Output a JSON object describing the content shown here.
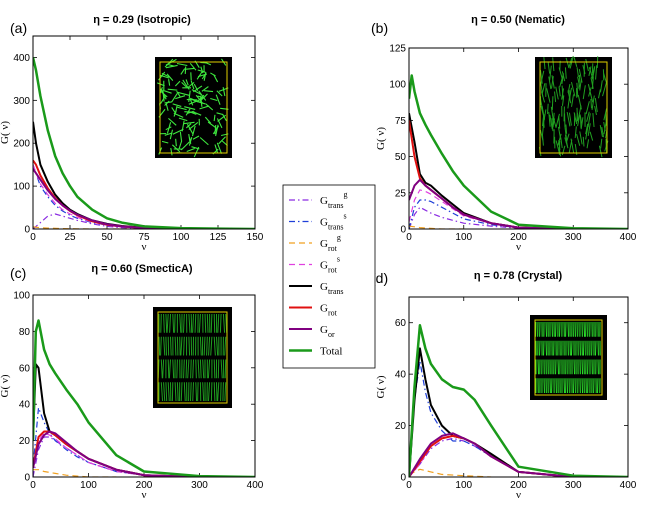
{
  "figure": {
    "series_styles": [
      {
        "key": "Gtrans_g",
        "color": "#8a2be2",
        "dash": "6,3,1.5,3",
        "width": 1.2
      },
      {
        "key": "Gtrans_s",
        "color": "#1f3fd8",
        "dash": "6,3,1.5,3",
        "width": 1.2
      },
      {
        "key": "Grot_g",
        "color": "#f0a020",
        "dash": "6,4",
        "width": 1.2
      },
      {
        "key": "Grot_s",
        "color": "#e040e0",
        "dash": "6,4",
        "width": 1.2
      },
      {
        "key": "Gtrans",
        "color": "#000000",
        "dash": "",
        "width": 2
      },
      {
        "key": "Grot",
        "color": "#e01010",
        "dash": "",
        "width": 2
      },
      {
        "key": "Gor",
        "color": "#800080",
        "dash": "",
        "width": 2
      },
      {
        "key": "Total",
        "color": "#1a9a1a",
        "dash": "",
        "width": 2.5
      }
    ],
    "legend": {
      "entries": [
        {
          "main": "G",
          "sub": "trans",
          "sup": "g"
        },
        {
          "main": "G",
          "sub": "trans",
          "sup": "s"
        },
        {
          "main": "G",
          "sub": "rot",
          "sup": "g"
        },
        {
          "main": "G",
          "sub": "rot",
          "sup": "s"
        },
        {
          "main": "G",
          "sub": "trans",
          "sup": ""
        },
        {
          "main": "G",
          "sub": "rot",
          "sup": ""
        },
        {
          "main": "G",
          "sub": "or",
          "sup": ""
        },
        {
          "main": "Total",
          "sub": "",
          "sup": ""
        }
      ]
    }
  },
  "chart_data": [
    {
      "type": "line",
      "panel_label": "(a)",
      "title": "η = 0.29 (Isotropic)",
      "xlabel": "ν",
      "ylabel": "G( ν)",
      "xlim": [
        0,
        150
      ],
      "ylim": [
        0,
        450
      ],
      "xticks": [
        0,
        25,
        50,
        75,
        100,
        125,
        150
      ],
      "yticks": [
        0,
        100,
        200,
        300,
        400
      ],
      "inset_color": "#3ee83e",
      "series": [
        {
          "name": "Gtrans_g",
          "x": [
            0,
            5,
            10,
            15,
            20,
            25,
            30,
            40,
            50,
            60,
            75,
            100
          ],
          "y": [
            0,
            15,
            30,
            35,
            30,
            25,
            20,
            12,
            6,
            3,
            1,
            0
          ]
        },
        {
          "name": "Gtrans_s",
          "x": [
            0,
            5,
            10,
            15,
            20,
            25,
            30,
            40,
            50,
            60,
            75,
            100
          ],
          "y": [
            150,
            100,
            75,
            55,
            42,
            32,
            25,
            15,
            9,
            5,
            2,
            0
          ]
        },
        {
          "name": "Grot_g",
          "x": [
            0,
            5,
            10,
            20,
            30,
            40,
            60,
            80
          ],
          "y": [
            5,
            3,
            2,
            1,
            0.5,
            0,
            0,
            0
          ]
        },
        {
          "name": "Grot_s",
          "x": [
            0,
            5,
            10,
            15,
            20,
            25,
            30,
            40,
            50,
            60,
            75,
            100
          ],
          "y": [
            150,
            105,
            80,
            60,
            45,
            35,
            27,
            16,
            9,
            5,
            2,
            0
          ]
        },
        {
          "name": "Gtrans",
          "x": [
            0,
            2,
            5,
            10,
            15,
            20,
            25,
            30,
            40,
            50,
            60,
            75,
            100,
            125,
            150
          ],
          "y": [
            250,
            200,
            150,
            110,
            80,
            60,
            45,
            35,
            20,
            12,
            7,
            3,
            1,
            0,
            0
          ]
        },
        {
          "name": "Grot",
          "x": [
            0,
            2,
            5,
            10,
            15,
            20,
            25,
            30,
            40,
            50,
            60,
            75,
            100,
            125,
            150
          ],
          "y": [
            160,
            150,
            125,
            95,
            72,
            55,
            42,
            32,
            18,
            10,
            6,
            2,
            1,
            0,
            0
          ]
        },
        {
          "name": "Gor",
          "x": [
            0,
            2,
            5,
            10,
            15,
            20,
            25,
            30,
            40,
            50,
            60,
            75,
            100,
            125,
            150
          ],
          "y": [
            140,
            130,
            115,
            90,
            70,
            55,
            43,
            33,
            20,
            11,
            6,
            2,
            1,
            0,
            0
          ]
        },
        {
          "name": "Total",
          "x": [
            0,
            2,
            5,
            10,
            15,
            20,
            25,
            30,
            40,
            50,
            60,
            75,
            100,
            125,
            150
          ],
          "y": [
            400,
            370,
            310,
            230,
            170,
            130,
            100,
            75,
            45,
            25,
            15,
            6,
            2,
            1,
            0
          ]
        }
      ]
    },
    {
      "type": "line",
      "panel_label": "(b)",
      "title": "η = 0.50 (Nematic)",
      "xlabel": "ν",
      "ylabel": "G( ν)",
      "xlim": [
        0,
        400
      ],
      "ylim": [
        0,
        125
      ],
      "xticks": [
        0,
        100,
        200,
        300,
        400
      ],
      "yticks": [
        0,
        25,
        50,
        75,
        100,
        125
      ],
      "inset_color": "#20a020",
      "series": [
        {
          "name": "Gtrans_g",
          "x": [
            0,
            10,
            20,
            30,
            40,
            60,
            80,
            100,
            150,
            200,
            300
          ],
          "y": [
            0,
            10,
            15,
            13,
            11,
            8,
            6,
            4,
            2,
            0.5,
            0
          ]
        },
        {
          "name": "Gtrans_s",
          "x": [
            0,
            10,
            20,
            30,
            40,
            60,
            80,
            100,
            150,
            200,
            300
          ],
          "y": [
            0,
            15,
            20,
            20,
            19,
            15,
            11,
            7,
            3,
            1,
            0
          ]
        },
        {
          "name": "Grot_g",
          "x": [
            0,
            10,
            20,
            40,
            60,
            100
          ],
          "y": [
            2,
            1.5,
            1,
            0.5,
            0,
            0
          ]
        },
        {
          "name": "Grot_s",
          "x": [
            0,
            10,
            20,
            30,
            40,
            60,
            80,
            100,
            150,
            200,
            300
          ],
          "y": [
            5,
            20,
            27,
            26,
            24,
            19,
            14,
            9,
            4,
            1,
            0
          ]
        },
        {
          "name": "Gtrans",
          "x": [
            0,
            10,
            20,
            30,
            40,
            60,
            80,
            100,
            150,
            200,
            300
          ],
          "y": [
            80,
            60,
            38,
            32,
            30,
            23,
            17,
            11,
            4,
            1,
            0
          ]
        },
        {
          "name": "Grot",
          "x": [
            0,
            10,
            20,
            30,
            40,
            60,
            80,
            100,
            150,
            200,
            300
          ],
          "y": [
            75,
            50,
            35,
            30,
            27,
            21,
            15,
            10,
            4,
            1,
            0
          ]
        },
        {
          "name": "Gor",
          "x": [
            0,
            10,
            20,
            30,
            40,
            60,
            80,
            100,
            150,
            200,
            300
          ],
          "y": [
            20,
            30,
            34,
            30,
            27,
            21,
            15,
            10,
            4,
            1,
            0
          ]
        },
        {
          "name": "Total",
          "x": [
            0,
            5,
            10,
            20,
            30,
            40,
            60,
            80,
            100,
            150,
            200,
            300,
            400
          ],
          "y": [
            90,
            106,
            95,
            80,
            72,
            65,
            52,
            40,
            30,
            12,
            3,
            0.5,
            0
          ]
        }
      ]
    },
    {
      "type": "line",
      "panel_label": "(c)",
      "title": "η = 0.60 (SmecticA)",
      "xlabel": "ν",
      "ylabel": "G( ν)",
      "xlim": [
        0,
        400
      ],
      "ylim": [
        0,
        100
      ],
      "xticks": [
        0,
        100,
        200,
        300,
        400
      ],
      "yticks": [
        0,
        20,
        40,
        60,
        80,
        100
      ],
      "inset_color": "#20a020",
      "series": [
        {
          "name": "Gtrans_g",
          "x": [
            0,
            10,
            20,
            30,
            40,
            60,
            80,
            100,
            150,
            200,
            300
          ],
          "y": [
            0,
            15,
            22,
            22,
            20,
            16,
            12,
            8,
            3,
            1,
            0
          ]
        },
        {
          "name": "Gtrans_s",
          "x": [
            0,
            10,
            20,
            30,
            40,
            60,
            80,
            100,
            150,
            200,
            300
          ],
          "y": [
            5,
            38,
            30,
            24,
            20,
            15,
            11,
            8,
            3,
            1,
            0
          ]
        },
        {
          "name": "Grot_g",
          "x": [
            0,
            10,
            20,
            30,
            40,
            60,
            80,
            100,
            150
          ],
          "y": [
            4,
            4,
            3,
            2.5,
            2,
            1,
            0.5,
            0,
            0
          ]
        },
        {
          "name": "Grot_s",
          "x": [
            0,
            10,
            20,
            30,
            40,
            60,
            80,
            100,
            150,
            200,
            300
          ],
          "y": [
            5,
            20,
            24,
            23,
            21,
            16,
            12,
            8,
            3,
            1,
            0
          ]
        },
        {
          "name": "Gtrans",
          "x": [
            0,
            5,
            10,
            20,
            30,
            40,
            60,
            80,
            100,
            150,
            200,
            300
          ],
          "y": [
            20,
            62,
            60,
            35,
            25,
            23,
            18,
            14,
            10,
            4,
            1,
            0
          ]
        },
        {
          "name": "Grot",
          "x": [
            0,
            10,
            20,
            30,
            40,
            60,
            80,
            100,
            150,
            200,
            300
          ],
          "y": [
            5,
            22,
            25,
            25,
            23,
            18,
            14,
            10,
            4,
            1,
            0
          ]
        },
        {
          "name": "Gor",
          "x": [
            0,
            10,
            20,
            30,
            40,
            60,
            80,
            100,
            150,
            200,
            300
          ],
          "y": [
            5,
            18,
            23,
            25,
            24,
            19,
            14,
            10,
            4,
            1,
            0
          ]
        },
        {
          "name": "Total",
          "x": [
            0,
            5,
            10,
            20,
            30,
            40,
            60,
            80,
            100,
            150,
            200,
            300,
            400
          ],
          "y": [
            20,
            80,
            86,
            70,
            62,
            57,
            48,
            40,
            30,
            12,
            3,
            0.5,
            0
          ]
        }
      ]
    },
    {
      "type": "line",
      "panel_label": "(d)",
      "title": "η = 0.78 (Crystal)",
      "xlabel": "ν",
      "ylabel": "G( ν)",
      "xlim": [
        0,
        400
      ],
      "ylim": [
        0,
        70
      ],
      "xticks": [
        0,
        100,
        200,
        300,
        400
      ],
      "yticks": [
        0,
        20,
        40,
        60
      ],
      "inset_color": "#2ef02e",
      "series": [
        {
          "name": "Gtrans_g",
          "x": [
            0,
            20,
            40,
            60,
            80,
            100,
            120,
            150,
            200,
            300
          ],
          "y": [
            0,
            5,
            11,
            14,
            15,
            14,
            12,
            8,
            2,
            0
          ]
        },
        {
          "name": "Gtrans_s",
          "x": [
            0,
            10,
            20,
            30,
            40,
            60,
            80,
            100,
            120,
            150,
            200,
            300
          ],
          "y": [
            0,
            30,
            45,
            33,
            25,
            18,
            14,
            14,
            12,
            8,
            2,
            0
          ]
        },
        {
          "name": "Grot_g",
          "x": [
            0,
            10,
            20,
            40,
            60,
            100,
            150
          ],
          "y": [
            1,
            2,
            3,
            2,
            1,
            0.5,
            0
          ]
        },
        {
          "name": "Grot_s",
          "x": [
            0,
            20,
            40,
            60,
            80,
            100,
            120,
            150,
            200,
            300
          ],
          "y": [
            0,
            5,
            12,
            15,
            16,
            15,
            13,
            8,
            2,
            0
          ]
        },
        {
          "name": "Gtrans",
          "x": [
            0,
            10,
            20,
            30,
            40,
            60,
            80,
            100,
            120,
            150,
            200,
            300
          ],
          "y": [
            0,
            30,
            50,
            38,
            28,
            20,
            16,
            15,
            13,
            9,
            2,
            0
          ]
        },
        {
          "name": "Grot",
          "x": [
            0,
            20,
            40,
            60,
            80,
            100,
            120,
            150,
            200,
            300
          ],
          "y": [
            0,
            6,
            12,
            15,
            16,
            15,
            13,
            8,
            2,
            0
          ]
        },
        {
          "name": "Gor",
          "x": [
            0,
            20,
            40,
            60,
            80,
            100,
            120,
            150,
            200,
            300
          ],
          "y": [
            0,
            7,
            13,
            16,
            17,
            15,
            13,
            8,
            2,
            0
          ]
        },
        {
          "name": "Total",
          "x": [
            0,
            10,
            20,
            30,
            40,
            60,
            80,
            100,
            120,
            150,
            200,
            300,
            400
          ],
          "y": [
            0,
            35,
            59,
            50,
            44,
            38,
            35,
            34,
            30,
            20,
            4,
            0.5,
            0
          ]
        }
      ]
    }
  ]
}
